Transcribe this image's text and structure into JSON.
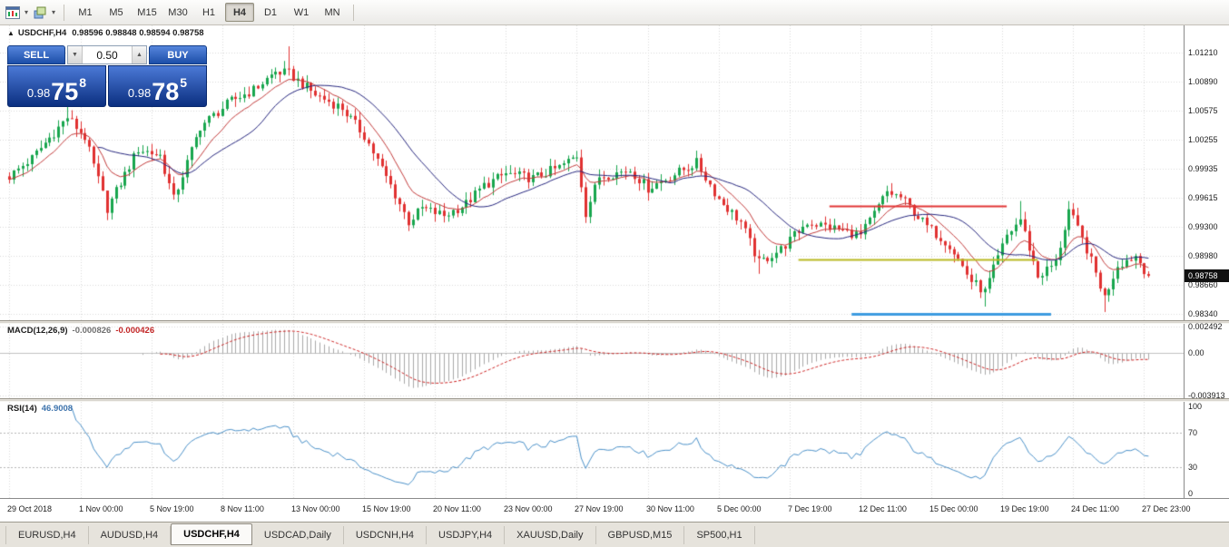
{
  "toolbar": {
    "timeframes": [
      {
        "label": "M1",
        "active": false
      },
      {
        "label": "M5",
        "active": false
      },
      {
        "label": "M15",
        "active": false
      },
      {
        "label": "M30",
        "active": false
      },
      {
        "label": "H1",
        "active": false
      },
      {
        "label": "H4",
        "active": true
      },
      {
        "label": "D1",
        "active": false
      },
      {
        "label": "W1",
        "active": false
      },
      {
        "label": "MN",
        "active": false
      }
    ]
  },
  "chart": {
    "collapse_marker": "▲",
    "symbol_title": "USDCHF,H4",
    "ohlc_text": "0.98596 0.98848 0.98594 0.98758"
  },
  "trade_panel": {
    "sell_label": "SELL",
    "buy_label": "BUY",
    "volume": "0.50",
    "down_arrow": "▼",
    "up_arrow": "▲",
    "sell_price": {
      "small": "0.98",
      "big": "75",
      "sup": "8"
    },
    "buy_price": {
      "small": "0.98",
      "big": "78",
      "sup": "5"
    }
  },
  "chart_data": {
    "type": "candlestick",
    "symbol": "USDCHF",
    "timeframe": "H4",
    "bar_count": 258,
    "ylim": [
      0.9827,
      1.0151
    ],
    "noise_amp": 0.0011,
    "wick_amp": 0.0009,
    "up_color": "#18a64e",
    "down_color": "#e03131",
    "grid_color": "#d9d9d9",
    "close_waypoints": [
      [
        0,
        0.9985
      ],
      [
        5,
        1.0005
      ],
      [
        13,
        1.005
      ],
      [
        17,
        1.0028
      ],
      [
        22,
        0.995
      ],
      [
        29,
        1.0015
      ],
      [
        34,
        1.0008
      ],
      [
        37,
        0.996
      ],
      [
        43,
        1.004
      ],
      [
        50,
        1.0068
      ],
      [
        55,
        1.008
      ],
      [
        60,
        1.01
      ],
      [
        63,
        1.0098
      ],
      [
        69,
        1.0075
      ],
      [
        75,
        1.006
      ],
      [
        80,
        1.003
      ],
      [
        86,
        0.9975
      ],
      [
        90,
        0.9935
      ],
      [
        93,
        0.995
      ],
      [
        98,
        0.9942
      ],
      [
        103,
        0.9955
      ],
      [
        107,
        0.9975
      ],
      [
        112,
        0.9988
      ],
      [
        118,
        0.9983
      ],
      [
        124,
        0.9995
      ],
      [
        128,
        1.0008
      ],
      [
        130,
        0.9945
      ],
      [
        133,
        0.9985
      ],
      [
        140,
        0.9992
      ],
      [
        144,
        0.9972
      ],
      [
        149,
        0.9985
      ],
      [
        155,
        1.0
      ],
      [
        160,
        0.996
      ],
      [
        165,
        0.9935
      ],
      [
        169,
        0.989
      ],
      [
        174,
        0.9905
      ],
      [
        180,
        0.9935
      ],
      [
        186,
        0.9928
      ],
      [
        192,
        0.992
      ],
      [
        198,
        0.9968
      ],
      [
        201,
        0.9962
      ],
      [
        207,
        0.993
      ],
      [
        212,
        0.991
      ],
      [
        217,
        0.987
      ],
      [
        220,
        0.9858
      ],
      [
        225,
        0.992
      ],
      [
        228,
        0.9938
      ],
      [
        232,
        0.9875
      ],
      [
        236,
        0.989
      ],
      [
        239,
        0.9948
      ],
      [
        243,
        0.9905
      ],
      [
        247,
        0.9852
      ],
      [
        250,
        0.9888
      ],
      [
        254,
        0.9898
      ],
      [
        257,
        0.98758
      ]
    ],
    "wick_spikes": [
      {
        "i": 13,
        "high": 1.0065
      },
      {
        "i": 22,
        "low": 0.9937
      },
      {
        "i": 63,
        "high": 1.0128
      },
      {
        "i": 90,
        "low": 0.9925
      },
      {
        "i": 128,
        "high": 1.0013
      },
      {
        "i": 130,
        "low": 0.9938
      },
      {
        "i": 155,
        "high": 1.0008
      },
      {
        "i": 169,
        "low": 0.9878
      },
      {
        "i": 220,
        "low": 0.9842
      },
      {
        "i": 228,
        "high": 0.9958
      },
      {
        "i": 239,
        "high": 0.9958
      },
      {
        "i": 247,
        "low": 0.9836
      }
    ],
    "moving_averages": [
      {
        "type": "ema",
        "period": 10,
        "color": "#c23b3b"
      },
      {
        "type": "sma",
        "period": 21,
        "color": "#26267e"
      }
    ],
    "hlines": [
      {
        "color": "#e23434",
        "price": 0.9953,
        "i0": 185,
        "i1": 225,
        "width": 2
      },
      {
        "color": "#b9b922",
        "price": 0.9894,
        "i0": 178,
        "i1": 232,
        "width": 2
      },
      {
        "color": "#3d9be0",
        "price": 0.9834,
        "i0": 190,
        "i1": 235,
        "width": 3
      }
    ],
    "price_ticks": [
      {
        "text": "1.01210",
        "v": 1.0121
      },
      {
        "text": "1.00890",
        "v": 1.0089
      },
      {
        "text": "1.00575",
        "v": 1.00575
      },
      {
        "text": "1.00255",
        "v": 1.00255
      },
      {
        "text": "0.99935",
        "v": 0.99935
      },
      {
        "text": "0.99615",
        "v": 0.99615
      },
      {
        "text": "0.99300",
        "v": 0.993
      },
      {
        "text": "0.98980",
        "v": 0.9898
      },
      {
        "text": "0.98660",
        "v": 0.9866
      },
      {
        "text": "0.98340",
        "v": 0.9834
      }
    ],
    "price_badge": {
      "text": "0.98758",
      "v": 0.98758
    },
    "time_ticks": [
      {
        "text": "29 Oct 2018",
        "i": 0
      },
      {
        "text": "1 Nov 00:00",
        "i": 16
      },
      {
        "text": "5 Nov 19:00",
        "i": 32
      },
      {
        "text": "8 Nov 11:00",
        "i": 48
      },
      {
        "text": "13 Nov 00:00",
        "i": 64
      },
      {
        "text": "15 Nov 19:00",
        "i": 80
      },
      {
        "text": "20 Nov 11:00",
        "i": 96
      },
      {
        "text": "23 Nov 00:00",
        "i": 112
      },
      {
        "text": "27 Nov 19:00",
        "i": 128
      },
      {
        "text": "30 Nov 11:00",
        "i": 144
      },
      {
        "text": "5 Dec 00:00",
        "i": 160
      },
      {
        "text": "7 Dec 19:00",
        "i": 176
      },
      {
        "text": "12 Dec 11:00",
        "i": 192
      },
      {
        "text": "15 Dec 00:00",
        "i": 208
      },
      {
        "text": "19 Dec 19:00",
        "i": 224
      },
      {
        "text": "24 Dec 11:00",
        "i": 240
      },
      {
        "text": "27 Dec 23:00",
        "i": 256
      }
    ],
    "macd": {
      "label": "MACD(12,26,9)",
      "value_main": "-0.000826",
      "value_signal": "-0.000426",
      "params": {
        "fast": 12,
        "slow": 26,
        "signal": 9
      },
      "ylim": [
        -0.0042,
        0.00275
      ],
      "hist_color": "#a8a8a8",
      "signal_color": "#cc2222",
      "scale_labels": [
        {
          "text": "0.002492",
          "v": 0.002492
        },
        {
          "text": "0.00",
          "v": 0
        },
        {
          "text": "-0.003913",
          "v": -0.003913
        }
      ]
    },
    "rsi": {
      "label": "RSI(14)",
      "value": "46.9008",
      "period": 14,
      "line_color": "#4a90c8",
      "levels": [
        70,
        30
      ],
      "scale_labels": [
        {
          "text": "100",
          "v": 100
        },
        {
          "text": "70",
          "v": 70
        },
        {
          "text": "30",
          "v": 30
        },
        {
          "text": "0",
          "v": 0
        }
      ]
    }
  },
  "tabs": [
    {
      "label": "EURUSD,H4",
      "active": false
    },
    {
      "label": "AUDUSD,H4",
      "active": false
    },
    {
      "label": "USDCHF,H4",
      "active": true
    },
    {
      "label": "USDCAD,Daily",
      "active": false
    },
    {
      "label": "USDCNH,H4",
      "active": false
    },
    {
      "label": "USDJPY,H4",
      "active": false
    },
    {
      "label": "XAUUSD,Daily",
      "active": false
    },
    {
      "label": "GBPUSD,M15",
      "active": false
    },
    {
      "label": "SP500,H1",
      "active": false
    }
  ]
}
